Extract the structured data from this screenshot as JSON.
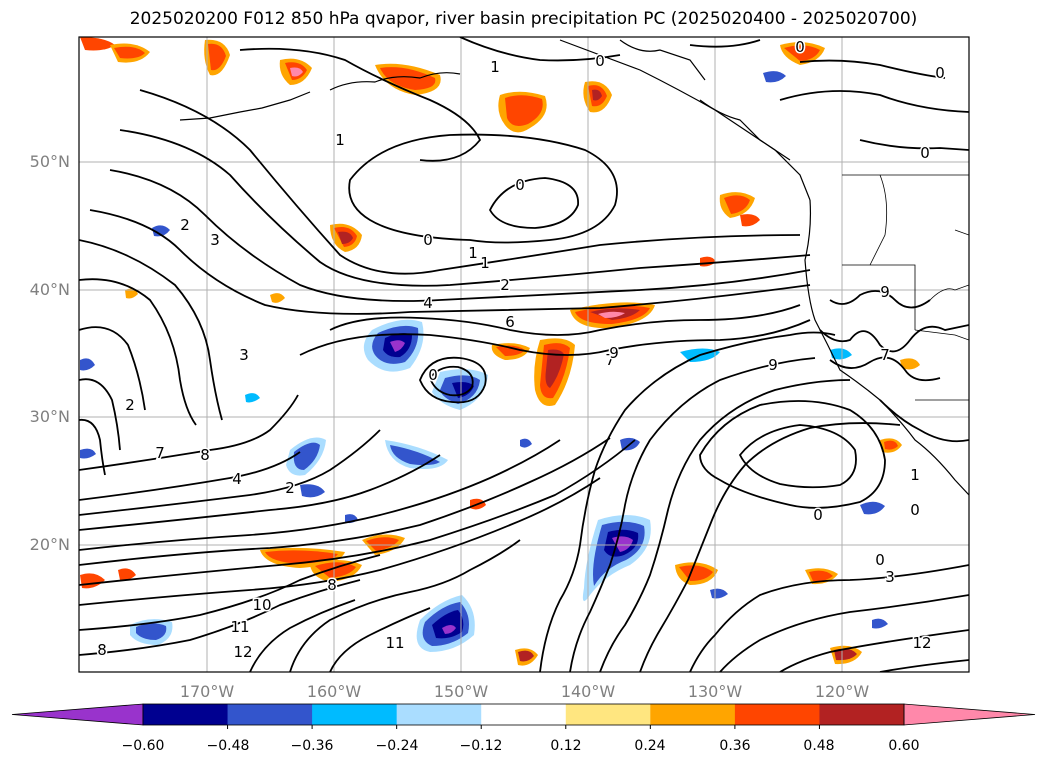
{
  "title": "2025020200 F012 850 hPa qvapor, river basin precipitation PC (2025020400 - 2025020700)",
  "latitude_labels": [
    "50°N",
    "40°N",
    "30°N",
    "20°N"
  ],
  "longitude_labels": [
    "170°W",
    "160°W",
    "150°W",
    "140°W",
    "130°W",
    "120°W"
  ],
  "colorbar": {
    "tick_labels": [
      "−0.60",
      "−0.48",
      "−0.36",
      "−0.24",
      "−0.12",
      "0.12",
      "0.24",
      "0.36",
      "0.48",
      "0.60"
    ],
    "colors": [
      "#9933cc",
      "#000090",
      "#3355cc",
      "#00bbff",
      "#aaddff",
      "#ffffff",
      "#ffe680",
      "#ffa500",
      "#ff4500",
      "#b22222",
      "#ff88aa"
    ]
  },
  "contour_labels": [
    "0",
    "1",
    "2",
    "3",
    "4",
    "6",
    "7",
    "8",
    "9",
    "10",
    "11",
    "12"
  ]
}
